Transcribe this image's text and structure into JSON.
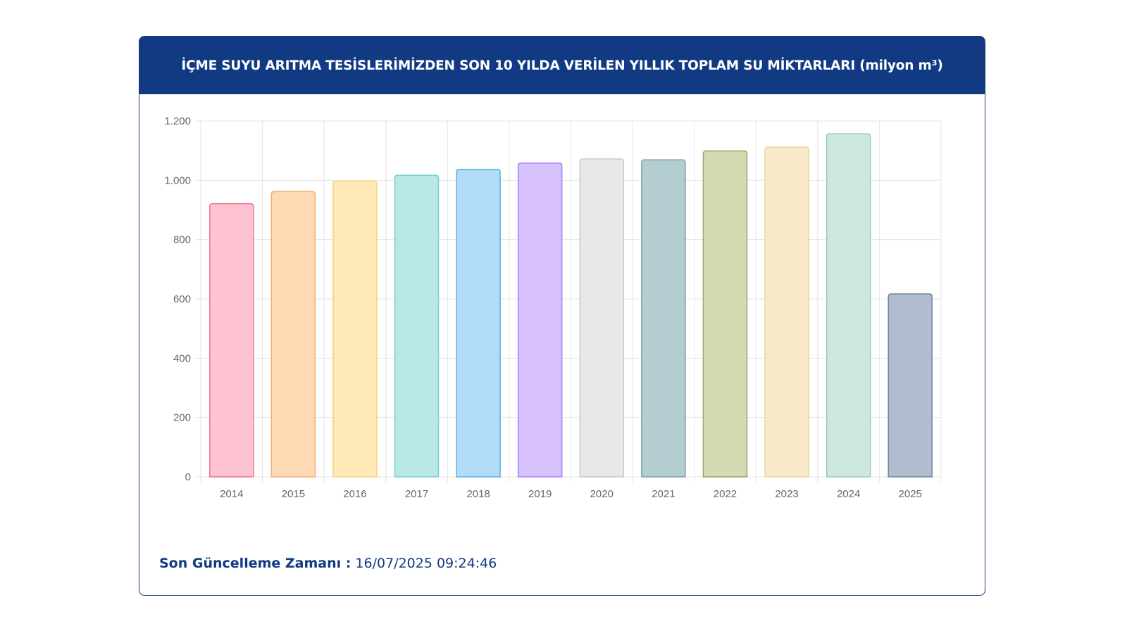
{
  "header": {
    "title": "İÇME SUYU ARITMA TESİSLERİMİZDEN SON 10 YILDA VERİLEN YILLIK TOPLAM SU MİKTARLARI (milyon m³)"
  },
  "chart_data": {
    "type": "bar",
    "title": "İÇME SUYU ARITMA TESİSLERİMİZDEN SON 10 YILDA VERİLEN YILLIK TOPLAM SU MİKTARLARI (milyon m³)",
    "xlabel": "",
    "ylabel": "",
    "categories": [
      "2014",
      "2015",
      "2016",
      "2017",
      "2018",
      "2019",
      "2020",
      "2021",
      "2022",
      "2023",
      "2024",
      "2025"
    ],
    "values": [
      921,
      962,
      997,
      1017,
      1037,
      1058,
      1072,
      1069,
      1099,
      1112,
      1157,
      617
    ],
    "ylim": [
      0,
      1200
    ],
    "yticks": [
      0,
      200,
      400,
      600,
      800,
      1000,
      1200
    ],
    "ytick_labels": [
      "0",
      "200",
      "400",
      "600",
      "800",
      "1.000",
      "1.200"
    ],
    "grid": true,
    "legend": "none",
    "colors": {
      "fills": [
        "#ffc2d0",
        "#ffd9b3",
        "#ffe9b8",
        "#b9e6e6",
        "#b1dbf6",
        "#d7c2fd",
        "#e8e8eb",
        "#b4cdd1",
        "#d6dab1",
        "#f8eac9",
        "#cde7de",
        "#b0bdcf"
      ],
      "strokes": [
        "#f0708f",
        "#f5ae6e",
        "#f7d478",
        "#79cfcf",
        "#5ab1e6",
        "#a782f5",
        "#c8c8cc",
        "#7a9fa6",
        "#9aa466",
        "#ecd497",
        "#93cdb6",
        "#6f84a3"
      ]
    }
  },
  "footer": {
    "label": "Son Güncelleme Zamanı :",
    "value": "16/07/2025 09:24:46"
  }
}
